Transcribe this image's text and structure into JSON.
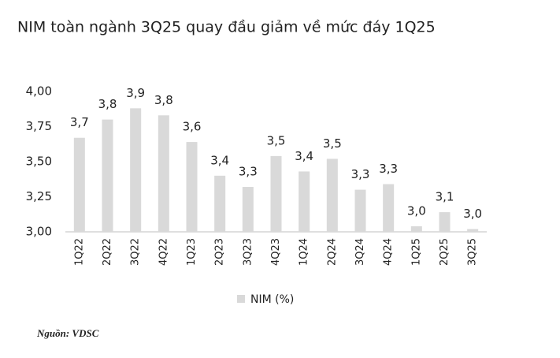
{
  "chart_data": {
    "type": "bar",
    "title": "NIM toàn ngành 3Q25 quay đầu giảm về mức đáy 1Q25",
    "categories": [
      "1Q22",
      "2Q22",
      "3Q22",
      "4Q22",
      "1Q23",
      "2Q23",
      "3Q23",
      "4Q23",
      "1Q24",
      "2Q24",
      "3Q24",
      "4Q24",
      "1Q25",
      "2Q25",
      "3Q25"
    ],
    "series": [
      {
        "name": "NIM (%)",
        "color": "#d9d9d9",
        "values": [
          3.67,
          3.8,
          3.88,
          3.83,
          3.64,
          3.4,
          3.32,
          3.54,
          3.43,
          3.52,
          3.3,
          3.34,
          3.04,
          3.14,
          3.02
        ],
        "value_labels": [
          "3,7",
          "3,8",
          "3,9",
          "3,8",
          "3,6",
          "3,4",
          "3,3",
          "3,5",
          "3,4",
          "3,5",
          "3,3",
          "3,3",
          "3,0",
          "3,1",
          "3,0"
        ]
      }
    ],
    "ylim": [
      3,
      4
    ],
    "yticks": [
      {
        "value": 3,
        "label": "3,00"
      },
      {
        "value": 3.25,
        "label": "3,25"
      },
      {
        "value": 3.5,
        "label": "3,50"
      },
      {
        "value": 3.75,
        "label": "3,75"
      },
      {
        "value": 4,
        "label": "4,00"
      }
    ],
    "grid": false,
    "legend": "bottom",
    "source": "Nguồn: VDSC"
  }
}
